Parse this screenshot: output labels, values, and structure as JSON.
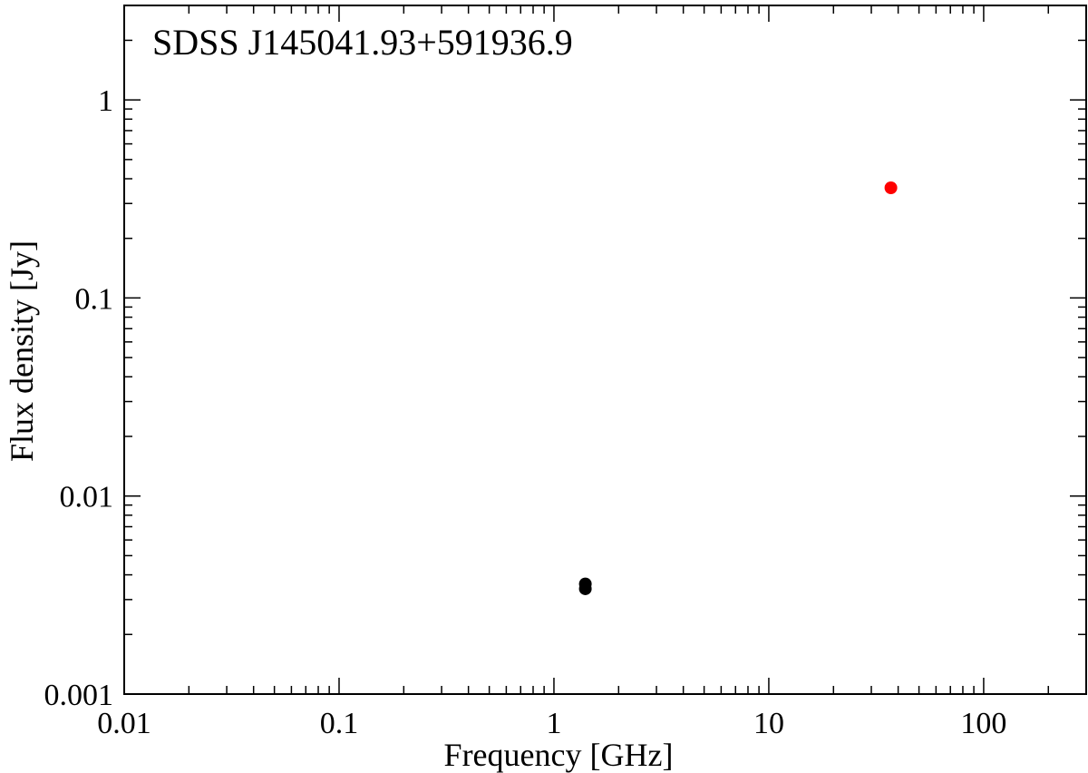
{
  "chart_data": {
    "type": "scatter",
    "title": "SDSS J145041.93+591936.9",
    "xlabel": "Frequency [GHz]",
    "ylabel": "Flux density [Jy]",
    "xscale": "log",
    "yscale": "log",
    "xlim": [
      0.01,
      300
    ],
    "ylim": [
      0.001,
      3
    ],
    "xticks": [
      {
        "value": 0.01,
        "label": "0.01"
      },
      {
        "value": 0.1,
        "label": "0.1"
      },
      {
        "value": 1,
        "label": "1"
      },
      {
        "value": 10,
        "label": "10"
      },
      {
        "value": 100,
        "label": "100"
      }
    ],
    "yticks": [
      {
        "value": 0.001,
        "label": "0.001"
      },
      {
        "value": 0.01,
        "label": "0.01"
      },
      {
        "value": 0.1,
        "label": "0.1"
      },
      {
        "value": 1,
        "label": "1"
      }
    ],
    "grid": false,
    "series": [
      {
        "color": "#000000",
        "points": [
          {
            "x": 1.4,
            "y": 0.0036
          },
          {
            "x": 1.4,
            "y": 0.0034
          }
        ]
      },
      {
        "color": "#ff0000",
        "points": [
          {
            "x": 37,
            "y": 0.36
          }
        ]
      }
    ]
  }
}
